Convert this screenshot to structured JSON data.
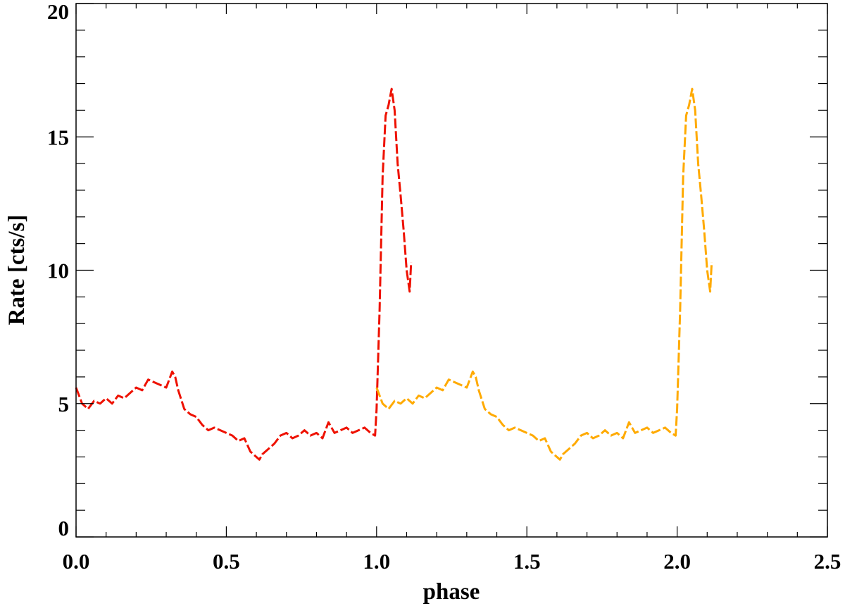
{
  "chart_data": {
    "type": "line",
    "title": "",
    "xlabel": "phase",
    "ylabel": "Rate [cts/s]",
    "xlim": [
      0.0,
      2.5
    ],
    "ylim": [
      0,
      20
    ],
    "x_ticks": [
      0.0,
      0.5,
      1.0,
      1.5,
      2.0,
      2.5
    ],
    "x_tick_labels": [
      "0.0",
      "0.5",
      "1.0",
      "1.5",
      "2.0",
      "2.5"
    ],
    "x_minor_step": 0.1,
    "y_ticks": [
      0,
      5,
      10,
      15,
      20
    ],
    "y_tick_labels": [
      "0",
      "5",
      "10",
      "15",
      "20"
    ],
    "y_minor_step": 1,
    "grid": false,
    "legend": "none",
    "series": [
      {
        "color": "#ee1100",
        "x": [
          0.0,
          0.02,
          0.04,
          0.06,
          0.08,
          0.1,
          0.12,
          0.14,
          0.16,
          0.18,
          0.2,
          0.22,
          0.24,
          0.26,
          0.28,
          0.3,
          0.32,
          0.33,
          0.34,
          0.36,
          0.38,
          0.4,
          0.42,
          0.44,
          0.46,
          0.48,
          0.5,
          0.52,
          0.54,
          0.56,
          0.58,
          0.6,
          0.61,
          0.62,
          0.64,
          0.66,
          0.68,
          0.7,
          0.72,
          0.74,
          0.76,
          0.78,
          0.8,
          0.82,
          0.84,
          0.86,
          0.88,
          0.9,
          0.92,
          0.94,
          0.96,
          0.98,
          0.995,
          1.0,
          1.01,
          1.02,
          1.03,
          1.04,
          1.05,
          1.06,
          1.07,
          1.08,
          1.09,
          1.1,
          1.11,
          1.115
        ],
        "y": [
          5.6,
          5.0,
          4.8,
          5.1,
          5.0,
          5.2,
          5.0,
          5.3,
          5.2,
          5.4,
          5.6,
          5.5,
          5.9,
          5.8,
          5.7,
          5.6,
          6.2,
          6.0,
          5.5,
          4.8,
          4.6,
          4.5,
          4.2,
          4.0,
          4.1,
          4.0,
          3.9,
          3.8,
          3.6,
          3.7,
          3.2,
          3.0,
          2.9,
          3.1,
          3.3,
          3.5,
          3.8,
          3.9,
          3.7,
          3.8,
          4.0,
          3.8,
          3.9,
          3.7,
          4.3,
          3.9,
          4.0,
          4.1,
          3.9,
          4.0,
          4.1,
          3.9,
          3.8,
          4.8,
          8.5,
          13.5,
          15.8,
          16.2,
          16.8,
          16.0,
          14.0,
          12.8,
          11.5,
          10.0,
          9.2,
          10.3
        ]
      },
      {
        "color": "#ffaa00",
        "x": [
          1.0,
          1.02,
          1.04,
          1.06,
          1.08,
          1.1,
          1.12,
          1.14,
          1.16,
          1.18,
          1.2,
          1.22,
          1.24,
          1.26,
          1.28,
          1.3,
          1.32,
          1.33,
          1.34,
          1.36,
          1.38,
          1.4,
          1.42,
          1.44,
          1.46,
          1.48,
          1.5,
          1.52,
          1.54,
          1.56,
          1.58,
          1.6,
          1.61,
          1.62,
          1.64,
          1.66,
          1.68,
          1.7,
          1.72,
          1.74,
          1.76,
          1.78,
          1.8,
          1.82,
          1.84,
          1.86,
          1.88,
          1.9,
          1.92,
          1.94,
          1.96,
          1.98,
          1.995,
          2.0,
          2.01,
          2.02,
          2.03,
          2.04,
          2.05,
          2.06,
          2.07,
          2.08,
          2.09,
          2.1,
          2.11,
          2.115
        ],
        "y": [
          5.6,
          5.0,
          4.8,
          5.1,
          5.0,
          5.2,
          5.0,
          5.3,
          5.2,
          5.4,
          5.6,
          5.5,
          5.9,
          5.8,
          5.7,
          5.6,
          6.2,
          6.0,
          5.5,
          4.8,
          4.6,
          4.5,
          4.2,
          4.0,
          4.1,
          4.0,
          3.9,
          3.8,
          3.6,
          3.7,
          3.2,
          3.0,
          2.9,
          3.1,
          3.3,
          3.5,
          3.8,
          3.9,
          3.7,
          3.8,
          4.0,
          3.8,
          3.9,
          3.7,
          4.3,
          3.9,
          4.0,
          4.1,
          3.9,
          4.0,
          4.1,
          3.9,
          3.8,
          4.8,
          8.5,
          13.5,
          15.8,
          16.2,
          16.8,
          16.0,
          14.0,
          12.8,
          11.5,
          10.0,
          9.2,
          10.3
        ]
      }
    ]
  }
}
